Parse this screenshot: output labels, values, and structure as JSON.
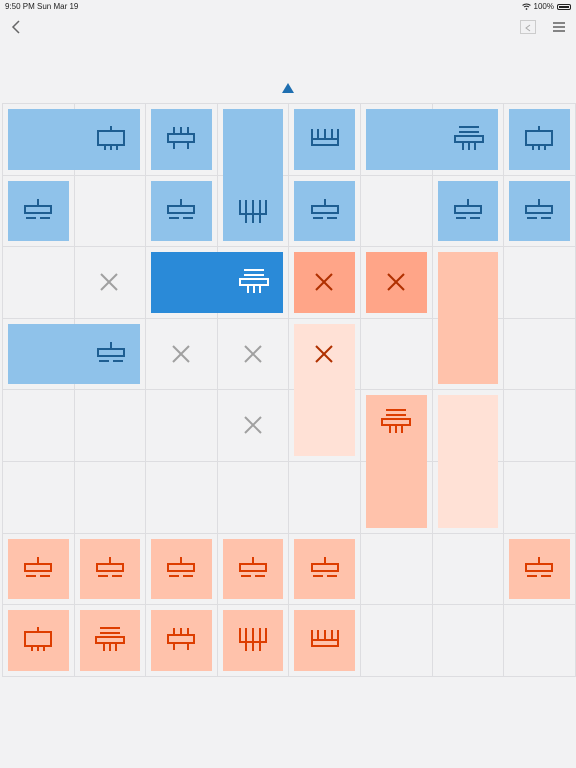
{
  "status_bar": {
    "time": "9:50 PM",
    "date": "Sun Mar 19",
    "battery": "100%"
  },
  "nav": {
    "back_icon": "chevron-left-icon",
    "share_icon": "share-icon",
    "menu_icon": "hamburger-menu-icon"
  },
  "turn_indicator": {
    "icon": "triangle-up-icon",
    "color": "#1f6fb0"
  },
  "colors": {
    "blue_light": "#8fc2ea",
    "blue_selected": "#2a8ad8",
    "blue_icon": "#1e5e92",
    "orange_light": "#ffc2ab",
    "orange_medium": "#ffa588",
    "orange_pale": "#ffe1d6",
    "orange_icon": "#dd3d00",
    "x_gray": "#a0a0a0",
    "x_dark": "#b03000"
  },
  "board": {
    "cols": 8,
    "rows": 8
  },
  "pieces": [
    {
      "id": "b1",
      "side": "blue",
      "type": "connector-icon",
      "c": 0,
      "r": 0,
      "w": 2,
      "h": 1,
      "state": "normal"
    },
    {
      "id": "b2",
      "side": "blue",
      "type": "double-comb-icon",
      "c": 2,
      "r": 0,
      "w": 1,
      "h": 1,
      "state": "normal"
    },
    {
      "id": "b3",
      "side": "blue",
      "type": "comb-legs-icon",
      "c": 3,
      "r": 0,
      "w": 1,
      "h": 2,
      "state": "normal"
    },
    {
      "id": "b4",
      "side": "blue",
      "type": "comb-icon",
      "c": 4,
      "r": 0,
      "w": 1,
      "h": 1,
      "state": "normal"
    },
    {
      "id": "b5",
      "side": "blue",
      "type": "stack-icon",
      "c": 5,
      "r": 0,
      "w": 2,
      "h": 1,
      "state": "normal"
    },
    {
      "id": "b6",
      "side": "blue",
      "type": "connector-icon",
      "c": 7,
      "r": 0,
      "w": 1,
      "h": 1,
      "state": "normal"
    },
    {
      "id": "b7",
      "side": "blue",
      "type": "base-icon",
      "c": 0,
      "r": 1,
      "w": 1,
      "h": 1,
      "state": "normal"
    },
    {
      "id": "b8",
      "side": "blue",
      "type": "base-icon",
      "c": 2,
      "r": 1,
      "w": 1,
      "h": 1,
      "state": "normal"
    },
    {
      "id": "b9",
      "side": "blue",
      "type": "base-icon",
      "c": 4,
      "r": 1,
      "w": 1,
      "h": 1,
      "state": "normal"
    },
    {
      "id": "b10",
      "side": "blue",
      "type": "base-icon",
      "c": 6,
      "r": 1,
      "w": 1,
      "h": 1,
      "state": "normal"
    },
    {
      "id": "b11",
      "side": "blue",
      "type": "base-icon",
      "c": 7,
      "r": 1,
      "w": 1,
      "h": 1,
      "state": "normal"
    },
    {
      "id": "b12",
      "side": "blue",
      "type": "stack-icon",
      "c": 2,
      "r": 2,
      "w": 2,
      "h": 1,
      "state": "selected"
    },
    {
      "id": "b13",
      "side": "blue",
      "type": "base-icon",
      "c": 0,
      "r": 3,
      "w": 2,
      "h": 1,
      "state": "normal"
    },
    {
      "id": "o1",
      "side": "orange",
      "type": "none",
      "c": 4,
      "r": 2,
      "w": 1,
      "h": 1,
      "state": "medium"
    },
    {
      "id": "o2",
      "side": "orange",
      "type": "none",
      "c": 5,
      "r": 2,
      "w": 1,
      "h": 1,
      "state": "medium"
    },
    {
      "id": "o3",
      "side": "orange",
      "type": "none",
      "c": 6,
      "r": 2,
      "w": 1,
      "h": 2,
      "state": "light"
    },
    {
      "id": "o4",
      "side": "orange",
      "type": "none",
      "c": 4,
      "r": 3,
      "w": 1,
      "h": 2,
      "state": "pale"
    },
    {
      "id": "o5",
      "side": "orange",
      "type": "none",
      "c": 6,
      "r": 4,
      "w": 1,
      "h": 2,
      "state": "pale"
    },
    {
      "id": "o6",
      "side": "orange",
      "type": "stack-icon",
      "c": 5,
      "r": 4,
      "w": 1,
      "h": 2,
      "state": "light"
    },
    {
      "id": "o7",
      "side": "orange",
      "type": "base-icon",
      "c": 0,
      "r": 6,
      "w": 1,
      "h": 1,
      "state": "light"
    },
    {
      "id": "o8",
      "side": "orange",
      "type": "base-icon",
      "c": 1,
      "r": 6,
      "w": 1,
      "h": 1,
      "state": "light"
    },
    {
      "id": "o9",
      "side": "orange",
      "type": "base-icon",
      "c": 2,
      "r": 6,
      "w": 1,
      "h": 1,
      "state": "light"
    },
    {
      "id": "o10",
      "side": "orange",
      "type": "base-icon",
      "c": 3,
      "r": 6,
      "w": 1,
      "h": 1,
      "state": "light"
    },
    {
      "id": "o11",
      "side": "orange",
      "type": "base-icon",
      "c": 4,
      "r": 6,
      "w": 1,
      "h": 1,
      "state": "light"
    },
    {
      "id": "o12",
      "side": "orange",
      "type": "base-icon",
      "c": 7,
      "r": 6,
      "w": 1,
      "h": 1,
      "state": "light"
    },
    {
      "id": "o13",
      "side": "orange",
      "type": "connector-icon",
      "c": 0,
      "r": 7,
      "w": 1,
      "h": 1,
      "state": "light"
    },
    {
      "id": "o14",
      "side": "orange",
      "type": "stack-icon",
      "c": 1,
      "r": 7,
      "w": 1,
      "h": 1,
      "state": "light"
    },
    {
      "id": "o15",
      "side": "orange",
      "type": "double-comb-icon",
      "c": 2,
      "r": 7,
      "w": 1,
      "h": 1,
      "state": "light"
    },
    {
      "id": "o16",
      "side": "orange",
      "type": "comb-legs-icon",
      "c": 3,
      "r": 7,
      "w": 1,
      "h": 1,
      "state": "light"
    },
    {
      "id": "o17",
      "side": "orange",
      "type": "comb-icon",
      "c": 4,
      "r": 7,
      "w": 1,
      "h": 1,
      "state": "light"
    }
  ],
  "marks": [
    {
      "c": 1,
      "r": 2,
      "style": "gray"
    },
    {
      "c": 2,
      "r": 3,
      "style": "gray"
    },
    {
      "c": 3,
      "r": 3,
      "style": "gray"
    },
    {
      "c": 3,
      "r": 4,
      "style": "gray"
    },
    {
      "c": 4,
      "r": 2,
      "style": "dark"
    },
    {
      "c": 5,
      "r": 2,
      "style": "dark"
    },
    {
      "c": 4,
      "r": 3,
      "style": "dark"
    }
  ]
}
